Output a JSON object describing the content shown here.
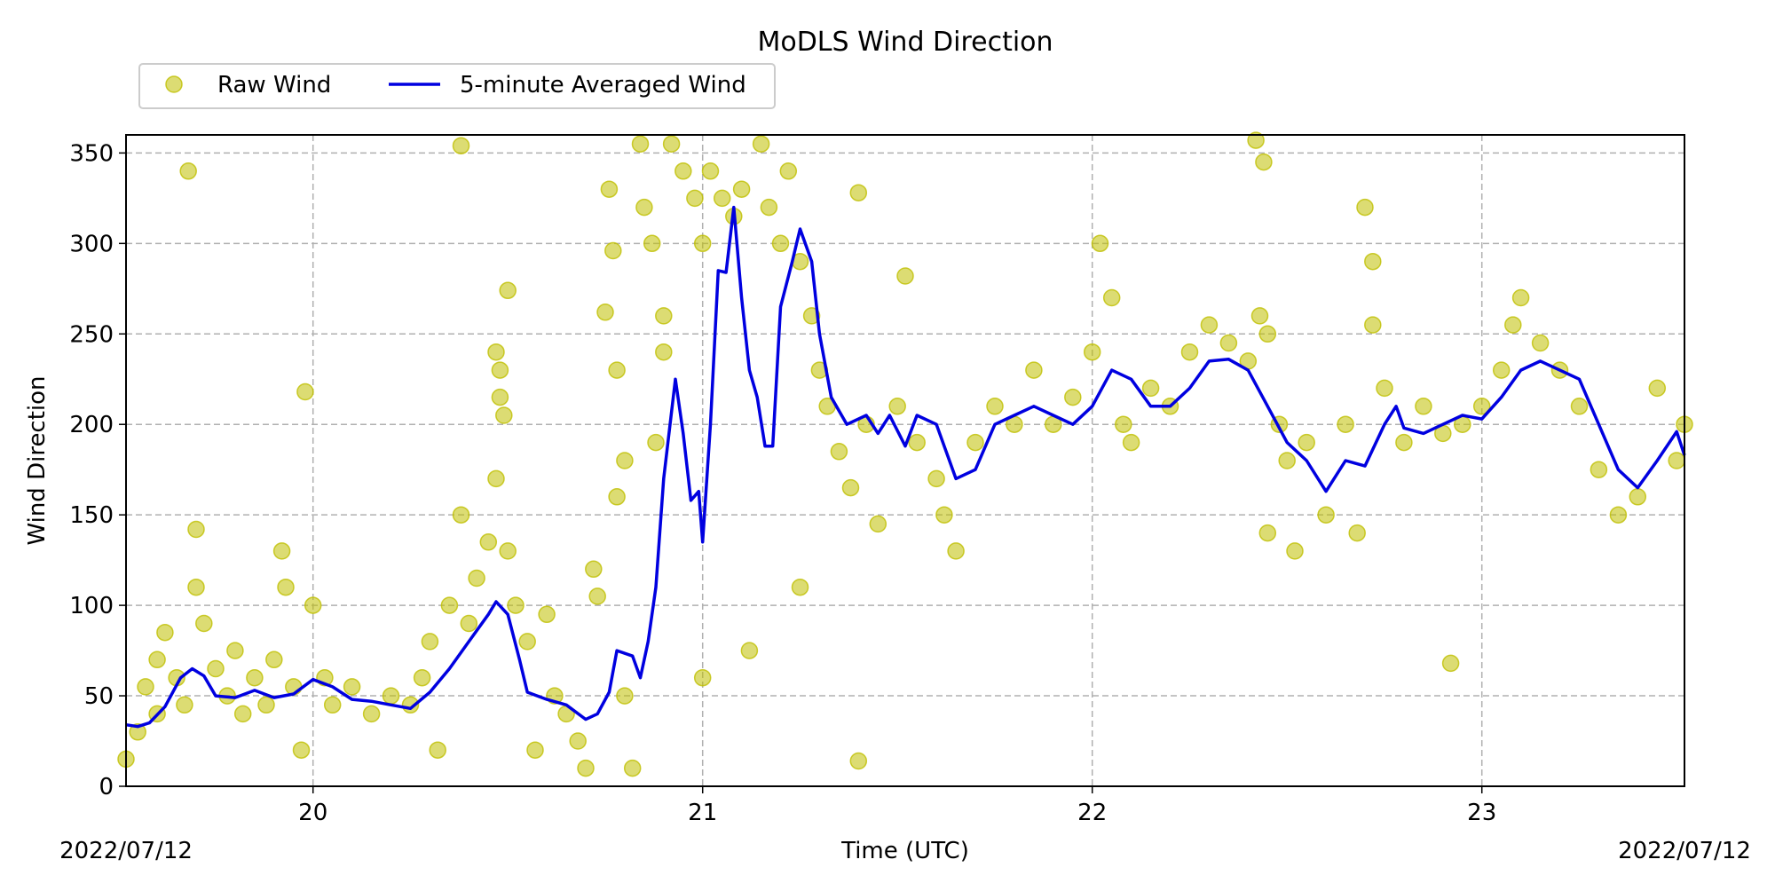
{
  "chart_data": {
    "type": "scatter",
    "title": "MoDLS Wind Direction",
    "xlabel": "Time (UTC)",
    "ylabel": "Wind Direction",
    "x_unit": "hour (UTC), 2022/07/12",
    "xlim": [
      19.52,
      23.52
    ],
    "ylim": [
      0,
      360
    ],
    "xticks": [
      20,
      21,
      22,
      23
    ],
    "xtick_labels": [
      "20",
      "21",
      "22",
      "23"
    ],
    "yticks": [
      0,
      50,
      100,
      150,
      200,
      250,
      300,
      350
    ],
    "ytick_labels": [
      "0",
      "50",
      "100",
      "150",
      "200",
      "250",
      "300",
      "350"
    ],
    "date_left": "2022/07/12",
    "date_right": "2022/07/12",
    "grid": true,
    "legend_placement": "top-left",
    "series": [
      {
        "name": "Raw Wind",
        "kind": "scatter",
        "color": "#bfbf00",
        "points": [
          [
            19.52,
            15
          ],
          [
            19.55,
            30
          ],
          [
            19.57,
            55
          ],
          [
            19.6,
            70
          ],
          [
            19.6,
            40
          ],
          [
            19.62,
            85
          ],
          [
            19.65,
            60
          ],
          [
            19.67,
            45
          ],
          [
            19.68,
            340
          ],
          [
            19.7,
            142
          ],
          [
            19.7,
            110
          ],
          [
            19.72,
            90
          ],
          [
            19.75,
            65
          ],
          [
            19.78,
            50
          ],
          [
            19.8,
            75
          ],
          [
            19.82,
            40
          ],
          [
            19.85,
            60
          ],
          [
            19.88,
            45
          ],
          [
            19.9,
            70
          ],
          [
            19.92,
            130
          ],
          [
            19.93,
            110
          ],
          [
            19.95,
            55
          ],
          [
            19.97,
            20
          ],
          [
            19.98,
            218
          ],
          [
            20.0,
            100
          ],
          [
            20.03,
            60
          ],
          [
            20.05,
            45
          ],
          [
            20.1,
            55
          ],
          [
            20.15,
            40
          ],
          [
            20.2,
            50
          ],
          [
            20.25,
            45
          ],
          [
            20.28,
            60
          ],
          [
            20.3,
            80
          ],
          [
            20.32,
            20
          ],
          [
            20.35,
            100
          ],
          [
            20.38,
            354
          ],
          [
            20.38,
            150
          ],
          [
            20.4,
            90
          ],
          [
            20.42,
            115
          ],
          [
            20.45,
            135
          ],
          [
            20.47,
            170
          ],
          [
            20.47,
            240
          ],
          [
            20.48,
            230
          ],
          [
            20.48,
            215
          ],
          [
            20.49,
            205
          ],
          [
            20.5,
            274
          ],
          [
            20.5,
            130
          ],
          [
            20.52,
            100
          ],
          [
            20.55,
            80
          ],
          [
            20.57,
            20
          ],
          [
            20.6,
            95
          ],
          [
            20.62,
            50
          ],
          [
            20.65,
            40
          ],
          [
            20.68,
            25
          ],
          [
            20.7,
            10
          ],
          [
            20.72,
            120
          ],
          [
            20.73,
            105
          ],
          [
            20.75,
            262
          ],
          [
            20.76,
            330
          ],
          [
            20.77,
            296
          ],
          [
            20.78,
            230
          ],
          [
            20.78,
            160
          ],
          [
            20.8,
            180
          ],
          [
            20.8,
            50
          ],
          [
            20.82,
            10
          ],
          [
            20.84,
            355
          ],
          [
            20.85,
            320
          ],
          [
            20.87,
            300
          ],
          [
            20.88,
            190
          ],
          [
            20.9,
            260
          ],
          [
            20.9,
            240
          ],
          [
            20.92,
            355
          ],
          [
            20.95,
            340
          ],
          [
            20.98,
            325
          ],
          [
            21.0,
            300
          ],
          [
            21.0,
            60
          ],
          [
            21.02,
            340
          ],
          [
            21.05,
            325
          ],
          [
            21.08,
            315
          ],
          [
            21.1,
            330
          ],
          [
            21.12,
            75
          ],
          [
            21.15,
            355
          ],
          [
            21.17,
            320
          ],
          [
            21.2,
            300
          ],
          [
            21.22,
            340
          ],
          [
            21.25,
            290
          ],
          [
            21.25,
            110
          ],
          [
            21.28,
            260
          ],
          [
            21.3,
            230
          ],
          [
            21.32,
            210
          ],
          [
            21.35,
            185
          ],
          [
            21.38,
            165
          ],
          [
            21.4,
            328
          ],
          [
            21.4,
            14
          ],
          [
            21.42,
            200
          ],
          [
            21.45,
            145
          ],
          [
            21.5,
            210
          ],
          [
            21.52,
            282
          ],
          [
            21.55,
            190
          ],
          [
            21.6,
            170
          ],
          [
            21.62,
            150
          ],
          [
            21.65,
            130
          ],
          [
            21.7,
            190
          ],
          [
            21.75,
            210
          ],
          [
            21.8,
            200
          ],
          [
            21.85,
            230
          ],
          [
            21.9,
            200
          ],
          [
            21.95,
            215
          ],
          [
            22.0,
            240
          ],
          [
            22.02,
            300
          ],
          [
            22.05,
            270
          ],
          [
            22.08,
            200
          ],
          [
            22.1,
            190
          ],
          [
            22.15,
            220
          ],
          [
            22.2,
            210
          ],
          [
            22.25,
            240
          ],
          [
            22.3,
            255
          ],
          [
            22.35,
            245
          ],
          [
            22.4,
            235
          ],
          [
            22.42,
            357
          ],
          [
            22.43,
            260
          ],
          [
            22.44,
            345
          ],
          [
            22.45,
            250
          ],
          [
            22.45,
            140
          ],
          [
            22.48,
            200
          ],
          [
            22.5,
            180
          ],
          [
            22.52,
            130
          ],
          [
            22.55,
            190
          ],
          [
            22.6,
            150
          ],
          [
            22.65,
            200
          ],
          [
            22.68,
            140
          ],
          [
            22.7,
            320
          ],
          [
            22.72,
            290
          ],
          [
            22.72,
            255
          ],
          [
            22.75,
            220
          ],
          [
            22.8,
            190
          ],
          [
            22.85,
            210
          ],
          [
            22.9,
            195
          ],
          [
            22.92,
            68
          ],
          [
            22.95,
            200
          ],
          [
            23.0,
            210
          ],
          [
            23.05,
            230
          ],
          [
            23.08,
            255
          ],
          [
            23.1,
            270
          ],
          [
            23.15,
            245
          ],
          [
            23.2,
            230
          ],
          [
            23.25,
            210
          ],
          [
            23.3,
            175
          ],
          [
            23.35,
            150
          ],
          [
            23.4,
            160
          ],
          [
            23.45,
            220
          ],
          [
            23.5,
            180
          ],
          [
            23.52,
            200
          ]
        ]
      },
      {
        "name": "5-minute Averaged Wind",
        "kind": "line",
        "color": "#0000e0",
        "points": [
          [
            19.52,
            34
          ],
          [
            19.55,
            33
          ],
          [
            19.58,
            35
          ],
          [
            19.62,
            44
          ],
          [
            19.66,
            60
          ],
          [
            19.69,
            65
          ],
          [
            19.72,
            61
          ],
          [
            19.75,
            50
          ],
          [
            19.8,
            49
          ],
          [
            19.85,
            53
          ],
          [
            19.9,
            49
          ],
          [
            19.95,
            51
          ],
          [
            20.0,
            59
          ],
          [
            20.05,
            55
          ],
          [
            20.1,
            48
          ],
          [
            20.15,
            47
          ],
          [
            20.2,
            45
          ],
          [
            20.25,
            43
          ],
          [
            20.3,
            52
          ],
          [
            20.35,
            65
          ],
          [
            20.4,
            80
          ],
          [
            20.45,
            95
          ],
          [
            20.47,
            102
          ],
          [
            20.5,
            95
          ],
          [
            20.53,
            70
          ],
          [
            20.55,
            52
          ],
          [
            20.6,
            48
          ],
          [
            20.65,
            45
          ],
          [
            20.7,
            37
          ],
          [
            20.73,
            40
          ],
          [
            20.76,
            52
          ],
          [
            20.78,
            75
          ],
          [
            20.82,
            72
          ],
          [
            20.84,
            60
          ],
          [
            20.86,
            80
          ],
          [
            20.88,
            110
          ],
          [
            20.9,
            170
          ],
          [
            20.93,
            225
          ],
          [
            20.95,
            195
          ],
          [
            20.97,
            158
          ],
          [
            20.99,
            163
          ],
          [
            21.0,
            135
          ],
          [
            21.02,
            200
          ],
          [
            21.04,
            285
          ],
          [
            21.06,
            284
          ],
          [
            21.08,
            320
          ],
          [
            21.1,
            270
          ],
          [
            21.12,
            230
          ],
          [
            21.14,
            215
          ],
          [
            21.16,
            188
          ],
          [
            21.18,
            188
          ],
          [
            21.2,
            265
          ],
          [
            21.23,
            290
          ],
          [
            21.25,
            308
          ],
          [
            21.28,
            290
          ],
          [
            21.3,
            250
          ],
          [
            21.33,
            215
          ],
          [
            21.37,
            200
          ],
          [
            21.42,
            205
          ],
          [
            21.45,
            195
          ],
          [
            21.48,
            205
          ],
          [
            21.52,
            188
          ],
          [
            21.55,
            205
          ],
          [
            21.6,
            200
          ],
          [
            21.65,
            170
          ],
          [
            21.7,
            175
          ],
          [
            21.75,
            200
          ],
          [
            21.8,
            205
          ],
          [
            21.85,
            210
          ],
          [
            21.9,
            205
          ],
          [
            21.95,
            200
          ],
          [
            22.0,
            210
          ],
          [
            22.05,
            230
          ],
          [
            22.1,
            225
          ],
          [
            22.15,
            210
          ],
          [
            22.2,
            210
          ],
          [
            22.25,
            220
          ],
          [
            22.3,
            235
          ],
          [
            22.35,
            236
          ],
          [
            22.4,
            230
          ],
          [
            22.45,
            210
          ],
          [
            22.5,
            190
          ],
          [
            22.55,
            180
          ],
          [
            22.6,
            163
          ],
          [
            22.65,
            180
          ],
          [
            22.7,
            177
          ],
          [
            22.75,
            200
          ],
          [
            22.78,
            210
          ],
          [
            22.8,
            198
          ],
          [
            22.85,
            195
          ],
          [
            22.9,
            200
          ],
          [
            22.95,
            205
          ],
          [
            23.0,
            203
          ],
          [
            23.05,
            215
          ],
          [
            23.1,
            230
          ],
          [
            23.15,
            235
          ],
          [
            23.2,
            230
          ],
          [
            23.25,
            225
          ],
          [
            23.3,
            200
          ],
          [
            23.35,
            175
          ],
          [
            23.4,
            165
          ],
          [
            23.45,
            180
          ],
          [
            23.5,
            196
          ],
          [
            23.52,
            183
          ]
        ]
      }
    ]
  }
}
